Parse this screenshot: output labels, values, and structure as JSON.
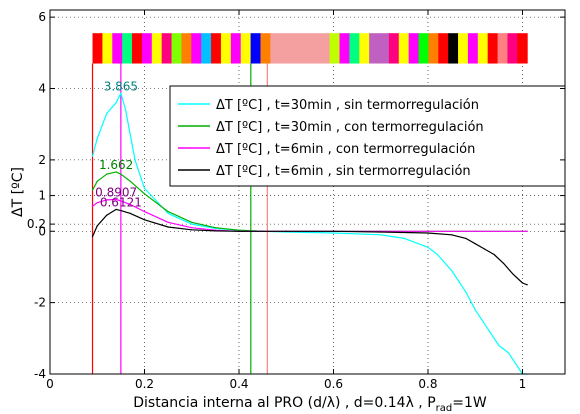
{
  "chart_data": {
    "type": "line",
    "xlabel": "Distancia interna al PRO (d/λ) , d=0.14λ , P",
    "xlabel_sub": "rad",
    "xlabel_end": "=1W",
    "ylabel": "ΔT [ºC]",
    "xlim": [
      0,
      1.09
    ],
    "ylim": [
      -4,
      6.2
    ],
    "xticks": [
      0,
      0.2,
      0.4,
      0.6,
      0.8,
      1
    ],
    "xtick_labels": [
      "0",
      "0.2",
      "0.4",
      "0.6",
      "0.8",
      "1"
    ],
    "yticks": [
      -4,
      -2,
      0,
      0.2,
      1,
      2,
      4,
      6
    ],
    "ytick_labels": [
      "-4",
      "-2",
      "0",
      "0.2",
      "1",
      "2",
      "4",
      "6"
    ],
    "grid": true,
    "legend_placement": "top-right",
    "series": [
      {
        "name": "ΔT [ºC] , t=30min , sin termorregulación",
        "color": "#00ffff",
        "x": [
          0.09,
          0.1,
          0.12,
          0.14,
          0.15,
          0.16,
          0.18,
          0.2,
          0.25,
          0.3,
          0.35,
          0.4,
          0.45,
          0.5,
          0.6,
          0.7,
          0.75,
          0.8,
          0.82,
          0.85,
          0.88,
          0.9,
          0.93,
          0.95,
          0.97,
          0.99,
          1.0,
          1.01
        ],
        "y": [
          2.1,
          2.6,
          3.3,
          3.6,
          3.865,
          3.4,
          2.0,
          1.2,
          0.5,
          0.2,
          0.08,
          0.03,
          0.0,
          -0.02,
          -0.05,
          -0.1,
          -0.2,
          -0.45,
          -0.65,
          -1.1,
          -1.7,
          -2.2,
          -2.8,
          -3.2,
          -3.4,
          -3.8,
          -4.0,
          -4.0
        ]
      },
      {
        "name": "ΔT [ºC] , t=30min , con termorregulación",
        "color": "#00b000",
        "x": [
          0.09,
          0.1,
          0.12,
          0.14,
          0.15,
          0.17,
          0.2,
          0.25,
          0.3,
          0.35,
          0.4,
          0.45,
          0.5,
          0.55,
          0.6,
          0.7,
          0.8,
          0.9,
          1.0,
          1.01
        ],
        "y": [
          1.15,
          1.4,
          1.6,
          1.662,
          1.6,
          1.4,
          1.05,
          0.55,
          0.25,
          0.1,
          0.03,
          0.0,
          0.0,
          0.0,
          0.0,
          0.0,
          0.0,
          0.0,
          0.0,
          0.0
        ]
      },
      {
        "name": "ΔT [ºC] , t=6min , con termorregulación",
        "color": "#ff00ff",
        "x": [
          0.09,
          0.1,
          0.12,
          0.14,
          0.15,
          0.17,
          0.2,
          0.25,
          0.3,
          0.35,
          0.4,
          0.5,
          0.6,
          0.7,
          0.8,
          0.9,
          1.0,
          1.01
        ],
        "y": [
          0.7,
          0.8,
          0.88,
          0.8907,
          0.85,
          0.75,
          0.55,
          0.25,
          0.1,
          0.03,
          0.0,
          0.0,
          0.0,
          0.0,
          0.0,
          0.0,
          0.0,
          0.0
        ]
      },
      {
        "name": "ΔT [ºC] , t=6min , sin termorregulación",
        "color": "#000000",
        "x": [
          0.09,
          0.1,
          0.12,
          0.14,
          0.15,
          0.17,
          0.2,
          0.25,
          0.3,
          0.35,
          0.4,
          0.5,
          0.6,
          0.7,
          0.8,
          0.85,
          0.88,
          0.9,
          0.92,
          0.94,
          0.96,
          0.98,
          1.0,
          1.01
        ],
        "y": [
          -0.15,
          0.15,
          0.45,
          0.6121,
          0.58,
          0.5,
          0.32,
          0.12,
          0.04,
          0.01,
          0.0,
          0.0,
          0.0,
          -0.02,
          -0.05,
          -0.1,
          -0.2,
          -0.35,
          -0.5,
          -0.65,
          -0.9,
          -1.2,
          -1.45,
          -1.5
        ]
      }
    ],
    "peak_labels": [
      {
        "text": "3.865",
        "x": 0.15,
        "y": 3.865,
        "color": "#008080"
      },
      {
        "text": "1.662",
        "x": 0.14,
        "y": 1.662,
        "color": "#008000"
      },
      {
        "text": "0.8907",
        "x": 0.14,
        "y": 0.8907,
        "color": "#800080"
      },
      {
        "text": "0.6121",
        "x": 0.15,
        "y": 0.6121,
        "color": "#800080"
      }
    ],
    "vertical_lines": [
      {
        "x": 0.09,
        "color": "#ff0000"
      },
      {
        "x": 0.15,
        "color": "#ff00ff"
      },
      {
        "x": 0.425,
        "color": "#00b000"
      },
      {
        "x": 0.46,
        "color": "#ff8080"
      }
    ],
    "top_bar": {
      "x_range": [
        0.09,
        1.01
      ],
      "y_range": [
        4.7,
        5.55
      ],
      "colors": [
        "#ff0000",
        "#ffff00",
        "#ff00ff",
        "#00ff80",
        "#ff0000",
        "#ff00ff",
        "#ffff00",
        "#ff0080",
        "#80ff00",
        "#ff8000",
        "#ff00ff",
        "#00c0ff",
        "#ff0000",
        "#ffff00",
        "#ff00ff",
        "#ffff00",
        "#0000ff",
        "#ff8000",
        "#f4a0a0",
        "#f4a0a0",
        "#f4a0a0",
        "#f4a0a0",
        "#f4a0a0",
        "#f4a0a0",
        "#c0ff00",
        "#ff00ff",
        "#00ff80",
        "#ffff00",
        "#c060c0",
        "#c060c0",
        "#ff0080",
        "#ffff00",
        "#ff00ff",
        "#00ff00",
        "#ff8000",
        "#ff0000",
        "#000000",
        "#ffff00",
        "#ff00ff",
        "#ffff00",
        "#ff0000",
        "#ff8080",
        "#ff0080",
        "#ff0000"
      ]
    }
  }
}
